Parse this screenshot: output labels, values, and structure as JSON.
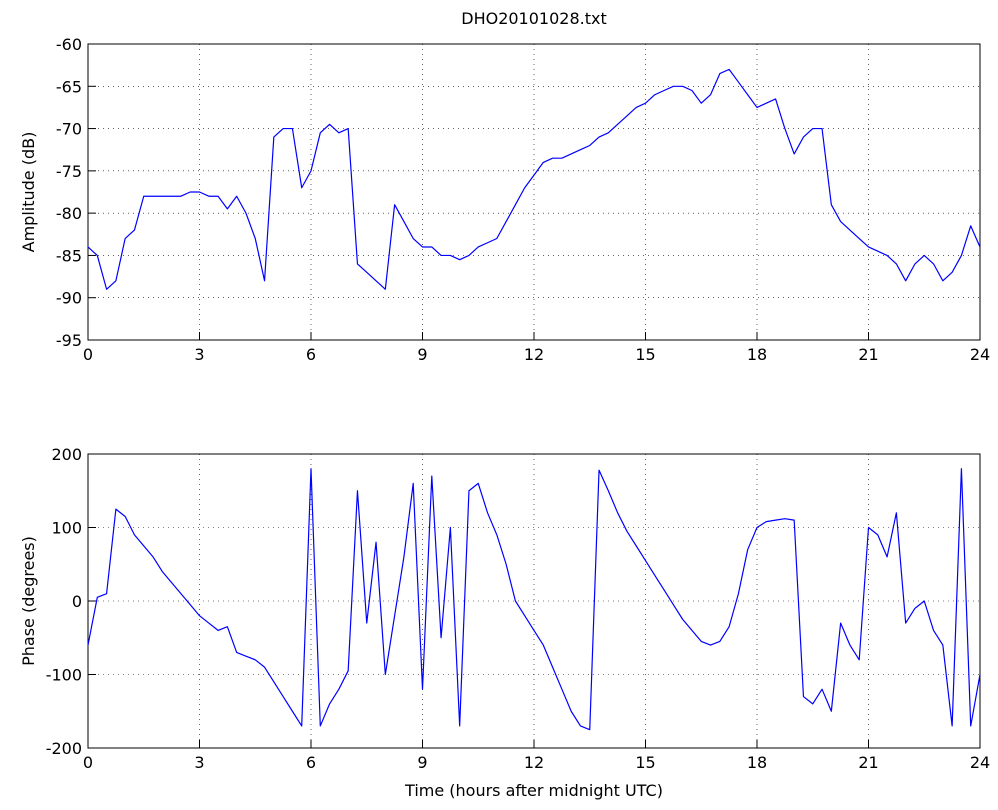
{
  "chart_data": [
    {
      "type": "line",
      "title": "DHO20101028.txt",
      "ylabel": "Amplitude (dB)",
      "color": "#0000ff",
      "grid": true,
      "xlim": [
        0,
        24
      ],
      "xticks": [
        0,
        3,
        6,
        9,
        12,
        15,
        18,
        21,
        24
      ],
      "ylim": [
        -95,
        -60
      ],
      "yticks": [
        -95,
        -90,
        -85,
        -80,
        -75,
        -70,
        -65,
        -60
      ],
      "x": [
        0,
        0.25,
        0.5,
        0.75,
        1,
        1.25,
        1.5,
        1.75,
        2,
        2.25,
        2.5,
        2.75,
        3,
        3.25,
        3.5,
        3.75,
        4,
        4.25,
        4.5,
        4.75,
        5,
        5.25,
        5.5,
        5.75,
        6,
        6.25,
        6.5,
        6.75,
        7,
        7.25,
        7.5,
        7.75,
        8,
        8.25,
        8.5,
        8.75,
        9,
        9.25,
        9.5,
        9.75,
        10,
        10.25,
        10.5,
        10.75,
        11,
        11.25,
        11.5,
        11.75,
        12,
        12.25,
        12.5,
        12.75,
        13,
        13.25,
        13.5,
        13.75,
        14,
        14.25,
        14.5,
        14.75,
        15,
        15.25,
        15.5,
        15.75,
        16,
        16.25,
        16.5,
        16.75,
        17,
        17.25,
        17.5,
        17.75,
        18,
        18.25,
        18.5,
        18.75,
        19,
        19.25,
        19.5,
        19.75,
        20,
        20.25,
        20.5,
        20.75,
        21,
        21.25,
        21.5,
        21.75,
        22,
        22.25,
        22.5,
        22.75,
        23,
        23.25,
        23.5,
        23.75,
        24
      ],
      "values": [
        -84,
        -85,
        -89,
        -88,
        -83,
        -82,
        -78,
        -78,
        -78,
        -78,
        -78,
        -77.5,
        -77.5,
        -78,
        -78,
        -79.5,
        -78,
        -80,
        -83,
        -88,
        -71,
        -70,
        -70,
        -77,
        -75,
        -70.5,
        -69.5,
        -70.5,
        -70,
        -86,
        -87,
        -88,
        -89,
        -79,
        -81,
        -83,
        -84,
        -84,
        -85,
        -85,
        -85.5,
        -85,
        -84,
        -83.5,
        -83,
        -81,
        -79,
        -77,
        -75.5,
        -74,
        -73.5,
        -73.5,
        -73,
        -72.5,
        -72,
        -71,
        -70.5,
        -69.5,
        -68.5,
        -67.5,
        -67,
        -66,
        -65.5,
        -65,
        -65,
        -65.5,
        -67,
        -66,
        -63.5,
        -63,
        -64.5,
        -66,
        -67.5,
        -67,
        -66.5,
        -70,
        -73,
        -71,
        -70,
        -70,
        -79,
        -81,
        -82,
        -83,
        -84,
        -84.5,
        -85,
        -86,
        -88,
        -86,
        -85,
        -86,
        -88,
        -87,
        -85,
        -81.5,
        -84
      ]
    },
    {
      "type": "line",
      "ylabel": "Phase (degrees)",
      "xlabel": "Time (hours after midnight UTC)",
      "color": "#0000ff",
      "grid": true,
      "xlim": [
        0,
        24
      ],
      "xticks": [
        0,
        3,
        6,
        9,
        12,
        15,
        18,
        21,
        24
      ],
      "ylim": [
        -200,
        200
      ],
      "yticks": [
        -200,
        -100,
        0,
        100,
        200
      ],
      "x": [
        0,
        0.25,
        0.5,
        0.75,
        1,
        1.25,
        1.5,
        1.75,
        2,
        2.25,
        2.5,
        2.75,
        3,
        3.25,
        3.5,
        3.75,
        4,
        4.25,
        4.5,
        4.75,
        5,
        5.25,
        5.5,
        5.75,
        6,
        6.25,
        6.5,
        6.75,
        7,
        7.25,
        7.5,
        7.75,
        8,
        8.25,
        8.5,
        8.75,
        9,
        9.25,
        9.5,
        9.75,
        10,
        10.25,
        10.5,
        10.75,
        11,
        11.25,
        11.5,
        11.75,
        12,
        12.25,
        12.5,
        12.75,
        13,
        13.25,
        13.5,
        13.75,
        14,
        14.25,
        14.5,
        14.75,
        15,
        15.25,
        15.5,
        15.75,
        16,
        16.25,
        16.5,
        16.75,
        17,
        17.25,
        17.5,
        17.75,
        18,
        18.25,
        18.5,
        18.75,
        19,
        19.25,
        19.5,
        19.75,
        20,
        20.25,
        20.5,
        20.75,
        21,
        21.25,
        21.5,
        21.75,
        22,
        22.25,
        22.5,
        22.75,
        23,
        23.25,
        23.5,
        23.75,
        24
      ],
      "values": [
        -60,
        5,
        10,
        125,
        115,
        90,
        75,
        60,
        40,
        25,
        10,
        -5,
        -20,
        -30,
        -40,
        -35,
        -70,
        -75,
        -80,
        -90,
        -110,
        -130,
        -150,
        -170,
        180,
        -170,
        -140,
        -120,
        -95,
        150,
        -30,
        80,
        -100,
        -20,
        60,
        160,
        -120,
        170,
        -50,
        100,
        -170,
        150,
        160,
        120,
        90,
        50,
        0,
        -20,
        -40,
        -60,
        -90,
        -120,
        -150,
        -170,
        -175,
        178,
        150,
        120,
        95,
        75,
        55,
        35,
        15,
        -5,
        -25,
        -40,
        -55,
        -60,
        -55,
        -35,
        10,
        70,
        100,
        108,
        110,
        112,
        110,
        -130,
        -140,
        -120,
        -150,
        -30,
        -60,
        -80,
        100,
        90,
        60,
        120,
        -30,
        -10,
        0,
        -40,
        -60,
        -170,
        180,
        -170,
        -100
      ]
    }
  ]
}
